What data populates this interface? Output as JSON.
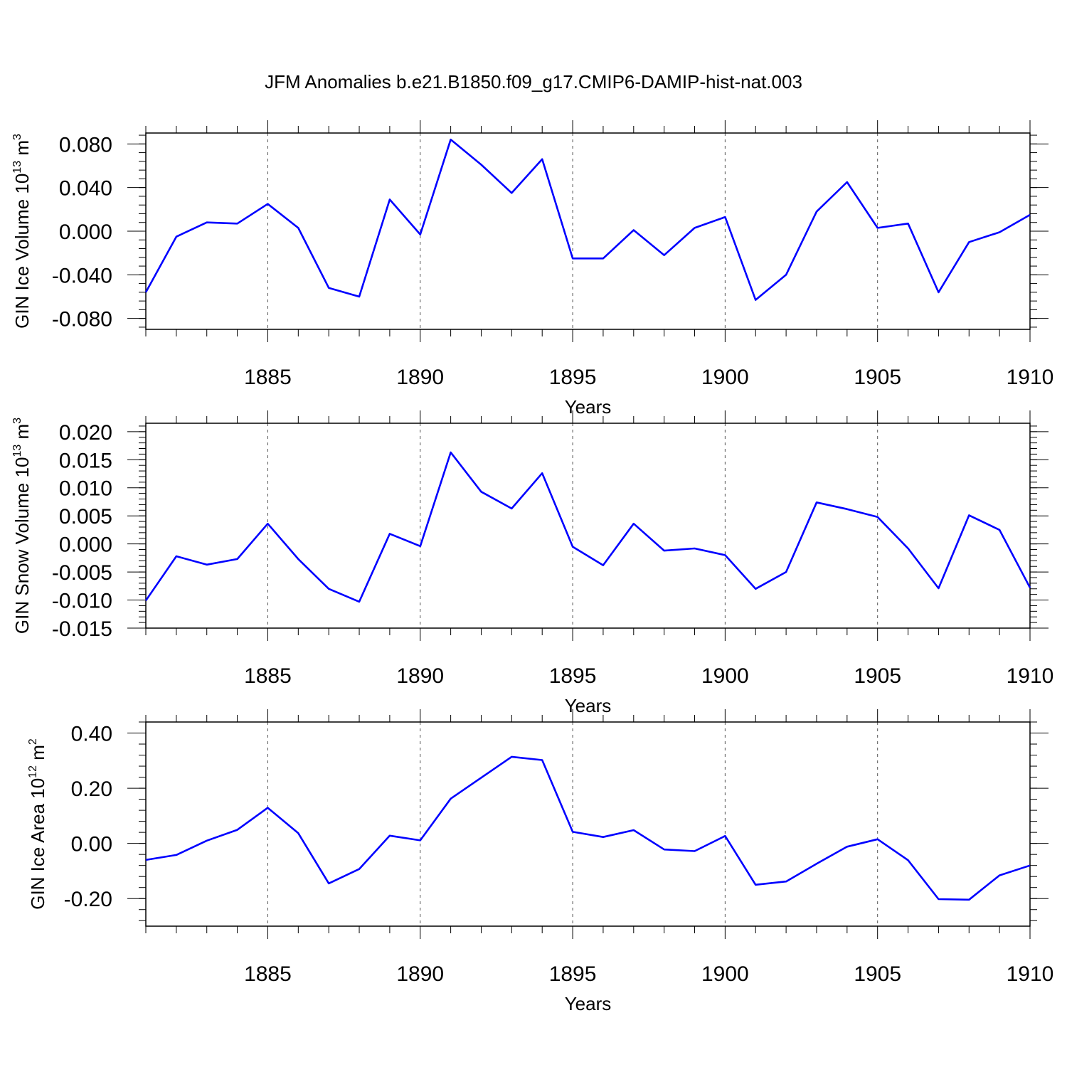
{
  "chart_data": {
    "type": "line",
    "title": "JFM Anomalies b.e21.B1850.f09_g17.CMIP6-DAMIP-hist-nat.003",
    "line_color": "#0000ff",
    "panels": [
      {
        "ylabel": {
          "text": "GIN Ice Volume 10",
          "exp": "13",
          "unit": " m",
          "unit_exp": "3"
        },
        "xlabel": "Years",
        "xlim": [
          1881,
          1910
        ],
        "ylim": [
          -0.09,
          0.09
        ],
        "yticks": [
          -0.08,
          -0.04,
          0.0,
          0.04,
          0.08
        ],
        "ytick_labels": [
          "-0.080",
          "-0.040",
          "0.000",
          "0.040",
          "0.080"
        ],
        "xticks": [
          1885,
          1890,
          1895,
          1900,
          1905,
          1910
        ],
        "xtick_labels": [
          "1885",
          "1890",
          "1895",
          "1900",
          "1905",
          "1910"
        ],
        "years": [
          1881,
          1882,
          1883,
          1884,
          1885,
          1886,
          1887,
          1888,
          1889,
          1890,
          1891,
          1892,
          1893,
          1894,
          1895,
          1896,
          1897,
          1898,
          1899,
          1900,
          1901,
          1902,
          1903,
          1904,
          1905,
          1906,
          1907,
          1908,
          1909,
          1910
        ],
        "values": [
          -0.056,
          -0.005,
          0.008,
          0.007,
          0.025,
          0.003,
          -0.052,
          -0.06,
          0.029,
          -0.003,
          0.084,
          0.061,
          0.035,
          0.066,
          -0.025,
          -0.025,
          0.001,
          -0.022,
          0.003,
          0.013,
          -0.063,
          -0.04,
          0.018,
          0.045,
          0.003,
          0.007,
          -0.056,
          -0.01,
          -0.001,
          0.015
        ]
      },
      {
        "ylabel": {
          "text": "GIN Snow Volume 10",
          "exp": "13",
          "unit": " m",
          "unit_exp": "3"
        },
        "xlabel": "Years",
        "xlim": [
          1881,
          1910
        ],
        "ylim": [
          -0.015,
          0.0215
        ],
        "yticks": [
          -0.015,
          -0.01,
          -0.005,
          0.0,
          0.005,
          0.01,
          0.015,
          0.02
        ],
        "ytick_labels": [
          "-0.015",
          "-0.010",
          "-0.005",
          "0.000",
          "0.005",
          "0.010",
          "0.015",
          "0.020"
        ],
        "xticks": [
          1885,
          1890,
          1895,
          1900,
          1905,
          1910
        ],
        "xtick_labels": [
          "1885",
          "1890",
          "1895",
          "1900",
          "1905",
          "1910"
        ],
        "years": [
          1881,
          1882,
          1883,
          1884,
          1885,
          1886,
          1887,
          1888,
          1889,
          1890,
          1891,
          1892,
          1893,
          1894,
          1895,
          1896,
          1897,
          1898,
          1899,
          1900,
          1901,
          1902,
          1903,
          1904,
          1905,
          1906,
          1907,
          1908,
          1909,
          1910
        ],
        "values": [
          -0.0101,
          -0.0022,
          -0.0037,
          -0.0027,
          0.0036,
          -0.0027,
          -0.008,
          -0.0103,
          0.0018,
          -0.0004,
          0.0163,
          0.0093,
          0.0063,
          0.0126,
          -0.0005,
          -0.0038,
          0.0036,
          -0.0012,
          -0.0008,
          -0.002,
          -0.008,
          -0.005,
          0.0074,
          0.0062,
          0.0048,
          -0.0008,
          -0.0079,
          0.0051,
          0.0025,
          -0.0078
        ]
      },
      {
        "ylabel": {
          "text": "GIN Ice Area 10",
          "exp": "12",
          "unit": " m",
          "unit_exp": "2"
        },
        "xlabel": "Years",
        "xlim": [
          1881,
          1910
        ],
        "ylim": [
          -0.3,
          0.44
        ],
        "yticks": [
          -0.2,
          0.0,
          0.2,
          0.4
        ],
        "ytick_labels": [
          "-0.20",
          "0.00",
          "0.20",
          "0.40"
        ],
        "xticks": [
          1885,
          1890,
          1895,
          1900,
          1905,
          1910
        ],
        "xtick_labels": [
          "1885",
          "1890",
          "1895",
          "1900",
          "1905",
          "1910"
        ],
        "years": [
          1881,
          1882,
          1883,
          1884,
          1885,
          1886,
          1887,
          1888,
          1889,
          1890,
          1891,
          1892,
          1893,
          1894,
          1895,
          1896,
          1897,
          1898,
          1899,
          1900,
          1901,
          1902,
          1903,
          1904,
          1905,
          1906,
          1907,
          1908,
          1909,
          1910
        ],
        "values": [
          -0.06,
          -0.042,
          0.01,
          0.049,
          0.129,
          0.037,
          -0.145,
          -0.093,
          0.028,
          0.011,
          0.162,
          0.238,
          0.314,
          0.302,
          0.042,
          0.023,
          0.048,
          -0.022,
          -0.028,
          0.027,
          -0.15,
          -0.138,
          -0.074,
          -0.012,
          0.015,
          -0.061,
          -0.202,
          -0.204,
          -0.116,
          -0.08
        ]
      }
    ]
  }
}
